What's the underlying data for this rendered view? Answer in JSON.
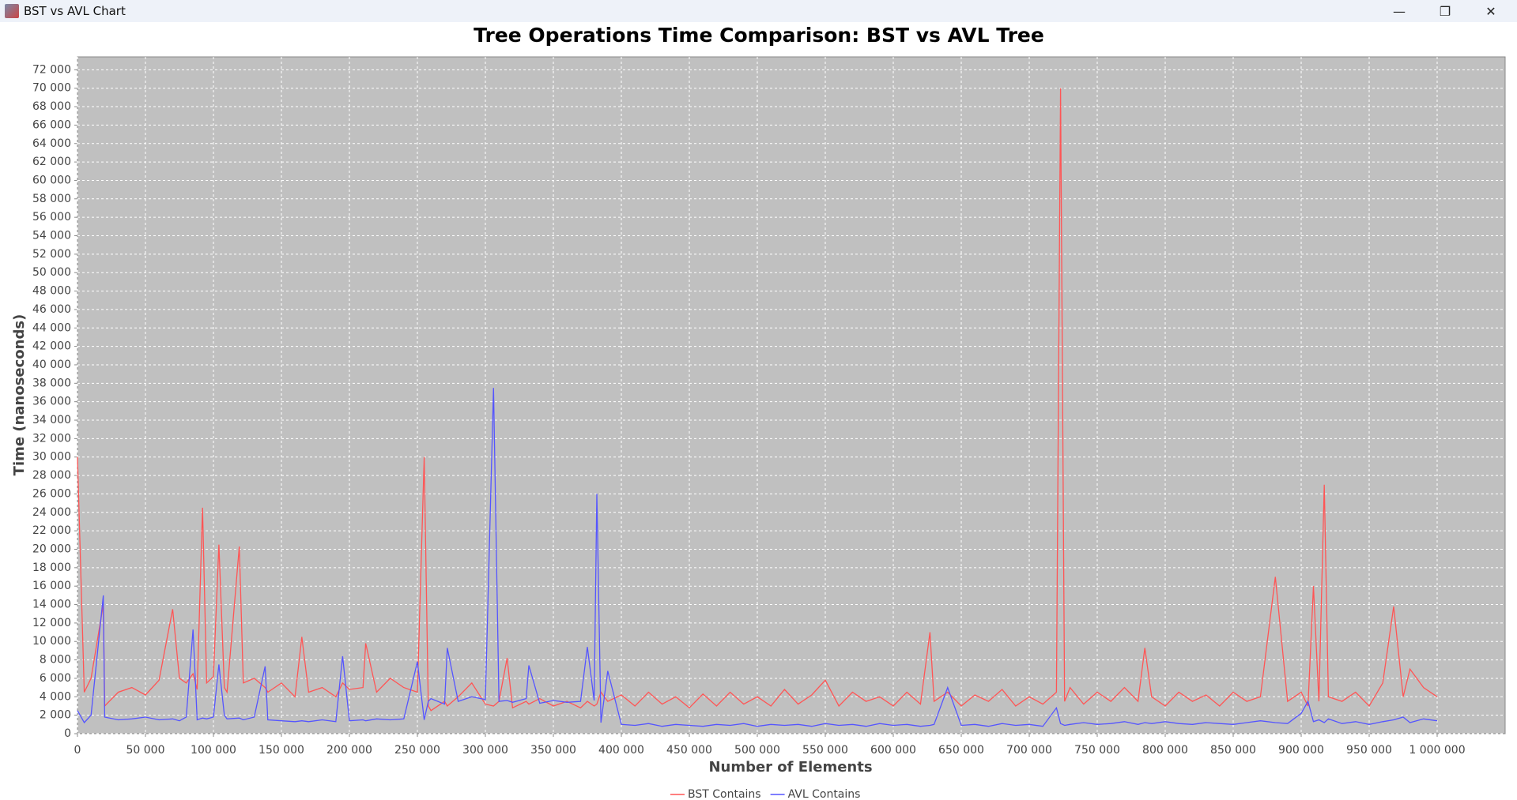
{
  "window": {
    "title": "BST vs AVL Chart"
  },
  "chart_data": {
    "type": "line",
    "title": "Tree Operations Time Comparison: BST vs AVL Tree",
    "x_label": "Number of Elements",
    "y_label": "Time (nanoseconds)",
    "grid": true,
    "legend": "bottom",
    "background": "#c0c0c0",
    "xlim": [
      0,
      1050000
    ],
    "ylim": [
      0,
      73400
    ],
    "xticks": [
      0,
      {
        "value": 50000,
        "label": "50 000"
      },
      {
        "value": 100000,
        "label": "100 000"
      },
      {
        "value": 150000,
        "label": "150 000"
      },
      {
        "value": 200000,
        "label": "200 000"
      },
      {
        "value": 250000,
        "label": "250 000"
      },
      {
        "value": 300000,
        "label": "300 000"
      },
      {
        "value": 350000,
        "label": "350 000"
      },
      {
        "value": 400000,
        "label": "400 000"
      },
      {
        "value": 450000,
        "label": "450 000"
      },
      {
        "value": 500000,
        "label": "500 000"
      },
      {
        "value": 550000,
        "label": "550 000"
      },
      {
        "value": 600000,
        "label": "600 000"
      },
      {
        "value": 650000,
        "label": "650 000"
      },
      {
        "value": 700000,
        "label": "700 000"
      },
      {
        "value": 750000,
        "label": "750 000"
      },
      {
        "value": 800000,
        "label": "800 000"
      },
      {
        "value": 850000,
        "label": "850 000"
      },
      {
        "value": 900000,
        "label": "900 000"
      },
      {
        "value": 950000,
        "label": "950 000"
      },
      {
        "value": 1000000,
        "label": "1 000 000"
      }
    ],
    "yticks": [
      0,
      {
        "value": 2000,
        "label": "2 000"
      },
      {
        "value": 4000,
        "label": "4 000"
      },
      {
        "value": 6000,
        "label": "6 000"
      },
      {
        "value": 8000,
        "label": "8 000"
      },
      {
        "value": 10000,
        "label": "10 000"
      },
      {
        "value": 12000,
        "label": "12 000"
      },
      {
        "value": 14000,
        "label": "14 000"
      },
      {
        "value": 16000,
        "label": "16 000"
      },
      {
        "value": 18000,
        "label": "18 000"
      },
      {
        "value": 20000,
        "label": "20 000"
      },
      {
        "value": 22000,
        "label": "22 000"
      },
      {
        "value": 24000,
        "label": "24 000"
      },
      {
        "value": 26000,
        "label": "26 000"
      },
      {
        "value": 28000,
        "label": "28 000"
      },
      {
        "value": 30000,
        "label": "30 000"
      },
      {
        "value": 32000,
        "label": "32 000"
      },
      {
        "value": 34000,
        "label": "34 000"
      },
      {
        "value": 36000,
        "label": "36 000"
      },
      {
        "value": 38000,
        "label": "38 000"
      },
      {
        "value": 40000,
        "label": "40 000"
      },
      {
        "value": 42000,
        "label": "42 000"
      },
      {
        "value": 44000,
        "label": "44 000"
      },
      {
        "value": 46000,
        "label": "46 000"
      },
      {
        "value": 48000,
        "label": "48 000"
      },
      {
        "value": 50000,
        "label": "50 000"
      },
      {
        "value": 52000,
        "label": "52 000"
      },
      {
        "value": 54000,
        "label": "54 000"
      },
      {
        "value": 56000,
        "label": "56 000"
      },
      {
        "value": 58000,
        "label": "58 000"
      },
      {
        "value": 60000,
        "label": "60 000"
      },
      {
        "value": 62000,
        "label": "62 000"
      },
      {
        "value": 64000,
        "label": "64 000"
      },
      {
        "value": 66000,
        "label": "66 000"
      },
      {
        "value": 68000,
        "label": "68 000"
      },
      {
        "value": 70000,
        "label": "70 000"
      },
      {
        "value": 72000,
        "label": "72 000"
      }
    ],
    "x": [
      0,
      5000,
      10000,
      19000,
      20000,
      30000,
      40000,
      50000,
      60000,
      70000,
      75000,
      80000,
      85000,
      88000,
      92000,
      95000,
      100000,
      104000,
      108000,
      110000,
      119000,
      122000,
      130000,
      138000,
      140000,
      150000,
      160000,
      165000,
      170000,
      180000,
      190000,
      195000,
      200000,
      210000,
      212000,
      220000,
      230000,
      240000,
      250000,
      255000,
      258000,
      260000,
      270000,
      272000,
      280000,
      290000,
      300000,
      306000,
      310000,
      316000,
      320000,
      330000,
      332000,
      340000,
      350000,
      360000,
      370000,
      375000,
      380000,
      382000,
      385000,
      390000,
      400000,
      410000,
      420000,
      430000,
      440000,
      450000,
      460000,
      470000,
      480000,
      490000,
      500000,
      510000,
      520000,
      530000,
      540000,
      550000,
      560000,
      570000,
      580000,
      590000,
      600000,
      610000,
      620000,
      627000,
      630000,
      640000,
      650000,
      660000,
      670000,
      680000,
      690000,
      700000,
      710000,
      720000,
      723000,
      726000,
      730000,
      740000,
      750000,
      760000,
      770000,
      780000,
      785000,
      790000,
      800000,
      810000,
      820000,
      830000,
      840000,
      850000,
      860000,
      870000,
      881000,
      890000,
      900000,
      905000,
      909000,
      913000,
      917000,
      920000,
      930000,
      940000,
      950000,
      960000,
      968000,
      975000,
      980000,
      990000,
      1000000
    ],
    "series": [
      {
        "name": "BST Contains",
        "color": "#ff5555",
        "values": [
          30000,
          4500,
          6000,
          14000,
          3000,
          4500,
          5000,
          4200,
          5800,
          13500,
          6000,
          5500,
          6500,
          4800,
          24500,
          5500,
          6200,
          20500,
          5000,
          4500,
          20300,
          5500,
          6000,
          5000,
          4500,
          5500,
          4000,
          10500,
          4500,
          5000,
          4000,
          5500,
          4800,
          5000,
          9800,
          4500,
          6000,
          5000,
          4500,
          30000,
          3000,
          2500,
          3500,
          3000,
          4000,
          5500,
          3200,
          3000,
          3500,
          8200,
          2800,
          3500,
          3200,
          3800,
          3000,
          3500,
          2800,
          3500,
          3000,
          3200,
          4500,
          3500,
          4200,
          3000,
          4500,
          3200,
          4000,
          2800,
          4300,
          3000,
          4500,
          3200,
          4000,
          3000,
          4800,
          3200,
          4200,
          5800,
          3000,
          4500,
          3500,
          4000,
          3000,
          4500,
          3200,
          11000,
          3500,
          4500,
          3000,
          4200,
          3500,
          4800,
          3000,
          4000,
          3200,
          4500,
          70000,
          3500,
          5000,
          3200,
          4500,
          3500,
          5000,
          3500,
          9300,
          4000,
          3000,
          4500,
          3500,
          4200,
          3000,
          4500,
          3500,
          4000,
          17000,
          3500,
          4500,
          3000,
          16000,
          3500,
          27000,
          4000,
          3500,
          4500,
          3000,
          5500,
          13800,
          4000,
          7000,
          5000,
          4000
        ]
      },
      {
        "name": "AVL Contains",
        "color": "#5555ff",
        "values": [
          2500,
          1200,
          2000,
          15000,
          1800,
          1500,
          1600,
          1800,
          1500,
          1600,
          1400,
          1800,
          11300,
          1500,
          1700,
          1600,
          1800,
          7500,
          2000,
          1600,
          1700,
          1500,
          1800,
          7300,
          1500,
          1400,
          1300,
          1400,
          1300,
          1500,
          1300,
          8400,
          1400,
          1500,
          1400,
          1600,
          1500,
          1600,
          7800,
          1500,
          3500,
          3800,
          3200,
          9300,
          3500,
          4000,
          3700,
          37500,
          3500,
          3600,
          3400,
          3800,
          7400,
          3300,
          3600,
          3400,
          3500,
          9400,
          3600,
          26000,
          1200,
          6800,
          1000,
          900,
          1100,
          800,
          1000,
          900,
          800,
          1000,
          900,
          1100,
          800,
          1000,
          900,
          1000,
          800,
          1100,
          900,
          1000,
          800,
          1100,
          900,
          1000,
          800,
          900,
          1000,
          5000,
          900,
          1000,
          800,
          1100,
          900,
          1000,
          800,
          2800,
          1100,
          900,
          1000,
          1200,
          1000,
          1100,
          1300,
          1000,
          1200,
          1100,
          1300,
          1100,
          1000,
          1200,
          1100,
          1000,
          1200,
          1400,
          1200,
          1100,
          2200,
          3500,
          1300,
          1500,
          1200,
          1600,
          1100,
          1300,
          1000,
          1300,
          1500,
          1800,
          1200,
          1600,
          1400
        ]
      }
    ]
  }
}
